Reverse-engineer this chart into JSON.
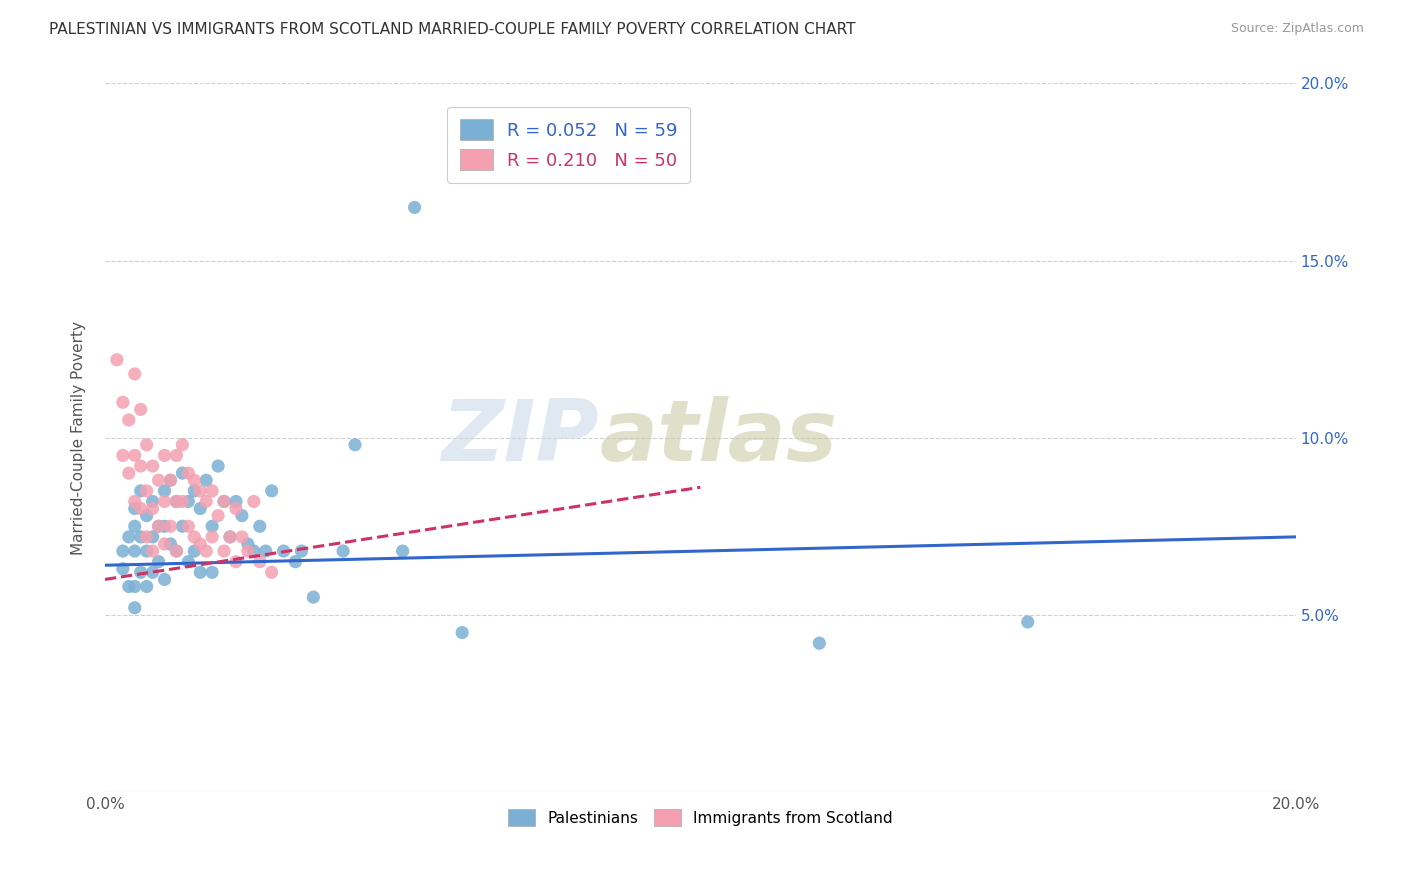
{
  "title": "PALESTINIAN VS IMMIGRANTS FROM SCOTLAND MARRIED-COUPLE FAMILY POVERTY CORRELATION CHART",
  "source": "Source: ZipAtlas.com",
  "ylabel": "Married-Couple Family Poverty",
  "r_blue": 0.052,
  "n_blue": 59,
  "r_pink": 0.21,
  "n_pink": 50,
  "legend_label_blue": "Palestinians",
  "legend_label_pink": "Immigrants from Scotland",
  "xlim": [
    0.0,
    0.2
  ],
  "ylim": [
    0.0,
    0.2
  ],
  "ytick_positions": [
    0.05,
    0.1,
    0.15,
    0.2
  ],
  "ytick_labels": [
    "5.0%",
    "10.0%",
    "15.0%",
    "20.0%"
  ],
  "xtick_positions": [
    0.0,
    0.05,
    0.1,
    0.15,
    0.2
  ],
  "xtick_labels": [
    "0.0%",
    "",
    "",
    "",
    "20.0%"
  ],
  "blue_color": "#7bafd4",
  "pink_color": "#f4a0b0",
  "blue_line_color": "#3366cc",
  "pink_line_color": "#cc3366",
  "watermark_zip": "ZIP",
  "watermark_atlas": "atlas",
  "blue_line_x": [
    0.0,
    0.2
  ],
  "blue_line_y": [
    0.064,
    0.072
  ],
  "pink_line_x": [
    0.0,
    0.1
  ],
  "pink_line_y": [
    0.06,
    0.086
  ],
  "blue_points_x": [
    0.003,
    0.003,
    0.004,
    0.004,
    0.005,
    0.005,
    0.005,
    0.005,
    0.005,
    0.006,
    0.006,
    0.006,
    0.007,
    0.007,
    0.007,
    0.008,
    0.008,
    0.008,
    0.009,
    0.009,
    0.01,
    0.01,
    0.01,
    0.011,
    0.011,
    0.012,
    0.012,
    0.013,
    0.013,
    0.014,
    0.014,
    0.015,
    0.015,
    0.016,
    0.016,
    0.017,
    0.018,
    0.018,
    0.019,
    0.02,
    0.021,
    0.022,
    0.023,
    0.024,
    0.025,
    0.026,
    0.027,
    0.028,
    0.03,
    0.032,
    0.033,
    0.035,
    0.04,
    0.042,
    0.05,
    0.052,
    0.06,
    0.12,
    0.155
  ],
  "blue_points_y": [
    0.068,
    0.063,
    0.072,
    0.058,
    0.08,
    0.075,
    0.068,
    0.058,
    0.052,
    0.085,
    0.072,
    0.062,
    0.078,
    0.068,
    0.058,
    0.082,
    0.072,
    0.062,
    0.075,
    0.065,
    0.085,
    0.075,
    0.06,
    0.088,
    0.07,
    0.082,
    0.068,
    0.09,
    0.075,
    0.082,
    0.065,
    0.085,
    0.068,
    0.08,
    0.062,
    0.088,
    0.075,
    0.062,
    0.092,
    0.082,
    0.072,
    0.082,
    0.078,
    0.07,
    0.068,
    0.075,
    0.068,
    0.085,
    0.068,
    0.065,
    0.068,
    0.055,
    0.068,
    0.098,
    0.068,
    0.165,
    0.045,
    0.042,
    0.048
  ],
  "pink_points_x": [
    0.002,
    0.003,
    0.003,
    0.004,
    0.004,
    0.005,
    0.005,
    0.005,
    0.006,
    0.006,
    0.006,
    0.007,
    0.007,
    0.007,
    0.008,
    0.008,
    0.008,
    0.009,
    0.009,
    0.01,
    0.01,
    0.01,
    0.011,
    0.011,
    0.012,
    0.012,
    0.012,
    0.013,
    0.013,
    0.014,
    0.014,
    0.015,
    0.015,
    0.016,
    0.016,
    0.017,
    0.017,
    0.018,
    0.018,
    0.019,
    0.02,
    0.02,
    0.021,
    0.022,
    0.022,
    0.023,
    0.024,
    0.025,
    0.026,
    0.028
  ],
  "pink_points_y": [
    0.122,
    0.11,
    0.095,
    0.105,
    0.09,
    0.118,
    0.095,
    0.082,
    0.108,
    0.092,
    0.08,
    0.098,
    0.085,
    0.072,
    0.092,
    0.08,
    0.068,
    0.088,
    0.075,
    0.095,
    0.082,
    0.07,
    0.088,
    0.075,
    0.095,
    0.082,
    0.068,
    0.098,
    0.082,
    0.09,
    0.075,
    0.088,
    0.072,
    0.085,
    0.07,
    0.082,
    0.068,
    0.085,
    0.072,
    0.078,
    0.082,
    0.068,
    0.072,
    0.08,
    0.065,
    0.072,
    0.068,
    0.082,
    0.065,
    0.062
  ]
}
